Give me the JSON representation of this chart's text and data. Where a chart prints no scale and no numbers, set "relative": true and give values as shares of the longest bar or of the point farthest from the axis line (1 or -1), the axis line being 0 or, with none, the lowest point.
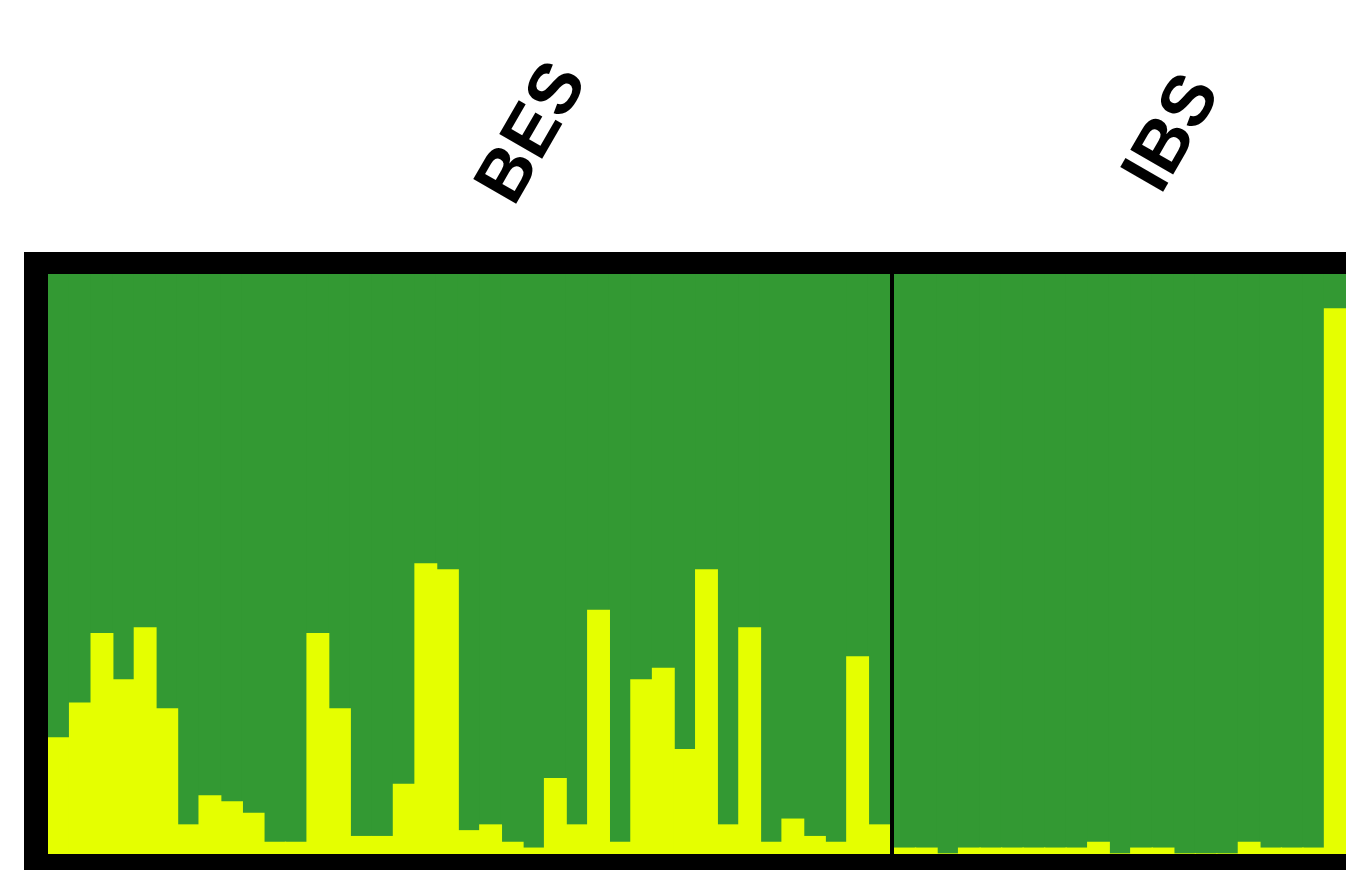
{
  "chart_data": [
    {
      "type": "bar",
      "title": "BES",
      "stacked": true,
      "relative": true,
      "categories": [
        null,
        null,
        null,
        null,
        null,
        null,
        null,
        null,
        null,
        null,
        null,
        null,
        null,
        null,
        null,
        null,
        null,
        null,
        null,
        null,
        null,
        null,
        null,
        null,
        null,
        null,
        null,
        null,
        null,
        null,
        null,
        null,
        null,
        null,
        null,
        null,
        null,
        null,
        null
      ],
      "series": [
        {
          "color": "#e5ff00",
          "values": [
            0.2,
            0.26,
            0.38,
            0.3,
            0.39,
            0.25,
            0.05,
            0.1,
            0.09,
            0.07,
            0.02,
            0.02,
            0.38,
            0.25,
            0.03,
            0.03,
            0.12,
            0.5,
            0.49,
            0.04,
            0.05,
            0.02,
            0.01,
            0.13,
            0.05,
            0.42,
            0.02,
            0.3,
            0.32,
            0.18,
            0.49,
            0.05,
            0.39,
            0.02,
            0.06,
            0.03,
            0.02,
            0.34,
            0.05
          ]
        },
        {
          "color": "#339933",
          "values": [
            0.8,
            0.74,
            0.62,
            0.7,
            0.61,
            0.75,
            0.95,
            0.9,
            0.91,
            0.93,
            0.98,
            0.98,
            0.62,
            0.75,
            0.97,
            0.97,
            0.88,
            0.5,
            0.51,
            0.96,
            0.95,
            0.98,
            0.99,
            0.87,
            0.95,
            0.58,
            0.98,
            0.7,
            0.68,
            0.82,
            0.51,
            0.95,
            0.61,
            0.98,
            0.94,
            0.97,
            0.98,
            0.66,
            0.95
          ]
        }
      ]
    },
    {
      "type": "bar",
      "title": "IBS",
      "stacked": true,
      "relative": true,
      "categories": [
        null,
        null,
        null,
        null,
        null,
        null,
        null,
        null,
        null,
        null,
        null,
        null,
        null,
        null,
        null,
        null,
        null,
        null,
        null,
        null,
        null
      ],
      "series": [
        {
          "color": "#e5ff00",
          "values": [
            0.01,
            0.01,
            0,
            0.01,
            0.01,
            0.01,
            0.01,
            0.01,
            0.01,
            0.02,
            0,
            0.01,
            0.01,
            0,
            0,
            0,
            0.02,
            0.01,
            0.01,
            0.01,
            0.94
          ]
        },
        {
          "color": "#339933",
          "values": [
            0.99,
            0.99,
            1,
            0.99,
            0.99,
            0.99,
            0.99,
            0.99,
            0.99,
            0.98,
            1,
            0.99,
            0.99,
            1,
            1,
            1,
            0.98,
            0.99,
            0.99,
            0.99,
            0.06
          ]
        }
      ]
    }
  ]
}
